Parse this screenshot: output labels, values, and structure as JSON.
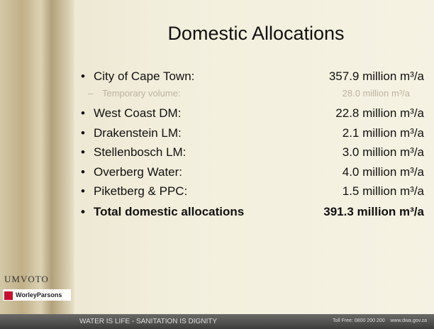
{
  "header": {
    "title": "Domestic Allocations"
  },
  "items": [
    {
      "label": "City of Cape Town:",
      "value": "357.9 million m³/a"
    },
    {
      "label": "Temporary volume:",
      "value": "28.0 million m³/a",
      "sub": true
    },
    {
      "label": "West Coast DM:",
      "value": "22.8 million m³/a"
    },
    {
      "label": "Drakenstein LM:",
      "value": "2.1 million m³/a"
    },
    {
      "label": "Stellenbosch LM:",
      "value": "3.0 million m³/a"
    },
    {
      "label": "Overberg Water:",
      "value": "4.0 million m³/a"
    },
    {
      "label": "Piketberg & PPC:",
      "value": "1.5 million m³/a"
    },
    {
      "label": "Total domestic allocations",
      "value": "391.3 million m³/a",
      "bold": true
    }
  ],
  "logos": {
    "umvoto": "UMVOTO",
    "worley": "WorleyParsons"
  },
  "footer": {
    "motto": "WATER IS LIFE - SANITATION IS DIGNITY",
    "contact": "Toll Free: 0800 200 200    www.dwa.gov.za"
  }
}
